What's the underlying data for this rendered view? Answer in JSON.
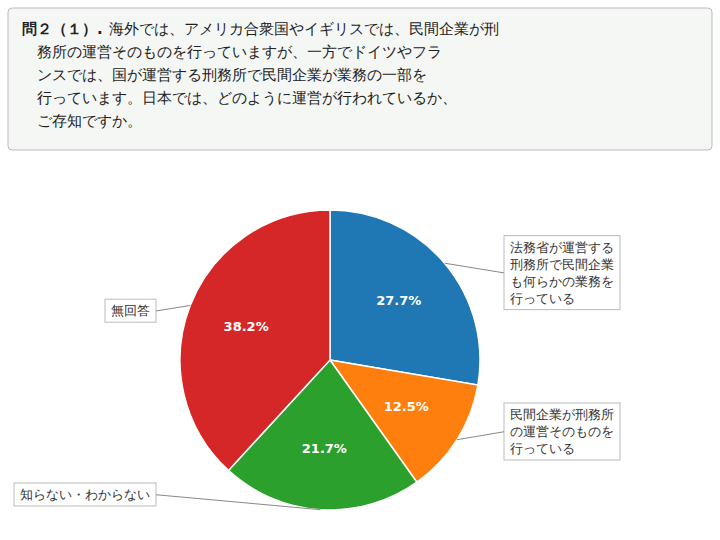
{
  "chart_data": {
    "type": "pie",
    "title": "問２（１）.",
    "subtitle": [
      "海外では、アメリカ合衆国やイギリスでは、民間企業が刑",
      "　務所の運営そのものを行っていますが、一方でドイツやフラ",
      "　ンスでは、国が運営する刑務所で民間企業が業務の一部を",
      "　行っています。日本では、どのように運営が行われているか、",
      "　ご存知ですか。"
    ],
    "categories": [
      "法務省が運営する\n刑務所で民間企業\nも何らかの業務を\n行っている",
      "民間企業が刑務所\nの運営そのものを\n行っている",
      "知らない・わからない",
      "無回答"
    ],
    "values": [
      27.7,
      12.5,
      21.7,
      38.2
    ],
    "value_labels": [
      "27.7%",
      "12.5%",
      "21.7%",
      "38.2%"
    ],
    "data_labels": true
  }
}
